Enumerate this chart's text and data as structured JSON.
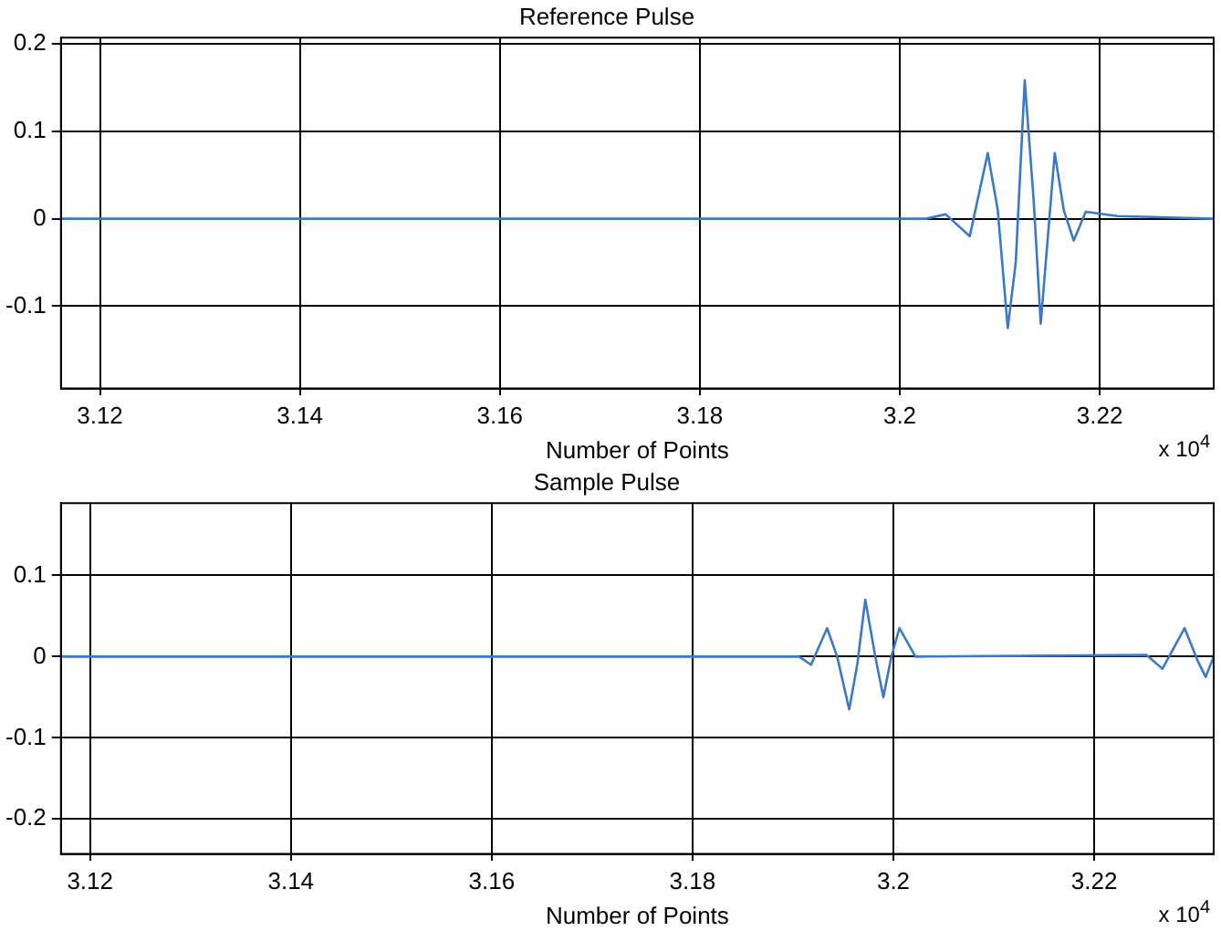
{
  "chart_data": [
    {
      "type": "line",
      "title": "Reference Pulse",
      "xlabel": "Number of Points",
      "annotations": [
        "x 10$^{4}$"
      ],
      "xlim": [
        3.1161,
        3.2314
      ],
      "xticks": [
        3.12,
        3.14,
        3.16,
        3.18,
        3.2,
        3.22
      ],
      "ylim": [
        -0.194,
        0.207
      ],
      "yticks": [
        0.2,
        0.1,
        0,
        -0.1
      ],
      "grid": true,
      "legend": false,
      "marker": "none",
      "line_style": "solid",
      "series": [
        {
          "color": "#3a78c8",
          "x": [
            3.1161,
            3.14,
            3.17,
            3.2026,
            3.2046,
            3.207,
            3.2088,
            3.2098,
            3.2108,
            3.2116,
            3.2125,
            3.2134,
            3.2141,
            3.2155,
            3.2164,
            3.2174,
            3.2186,
            3.2218,
            3.2314
          ],
          "values": [
            0,
            0,
            0,
            0,
            0.005,
            -0.02,
            0.075,
            0.01,
            -0.125,
            -0.05,
            0.158,
            0.02,
            -0.12,
            0.075,
            0.01,
            -0.025,
            0.008,
            0.003,
            0
          ]
        }
      ]
    },
    {
      "type": "line",
      "title": "Sample Pulse",
      "xlabel": "Number of Points",
      "annotations": [
        "x 10$^{4}$"
      ],
      "xlim": [
        3.1171,
        3.2319
      ],
      "xticks": [
        3.12,
        3.14,
        3.16,
        3.18,
        3.2,
        3.22
      ],
      "ylim": [
        -0.243,
        0.189
      ],
      "yticks": [
        0.1,
        0,
        -0.1,
        -0.2
      ],
      "grid": true,
      "legend": false,
      "marker": "none",
      "line_style": "solid",
      "series": [
        {
          "color": "#3a78c8",
          "x": [
            3.1171,
            3.15,
            3.18,
            3.1906,
            3.1918,
            3.1934,
            3.1944,
            3.1956,
            3.1964,
            3.1972,
            3.1982,
            3.199,
            3.1998,
            3.2006,
            3.2022,
            3.2252,
            3.2268,
            3.229,
            3.2303,
            3.2311,
            3.2319
          ],
          "values": [
            0,
            0,
            0,
            0,
            -0.01,
            0.035,
            0,
            -0.065,
            -0.01,
            0.07,
            0,
            -0.05,
            0,
            0.035,
            0,
            0.002,
            -0.015,
            0.035,
            -0.005,
            -0.025,
            0
          ]
        }
      ]
    }
  ]
}
